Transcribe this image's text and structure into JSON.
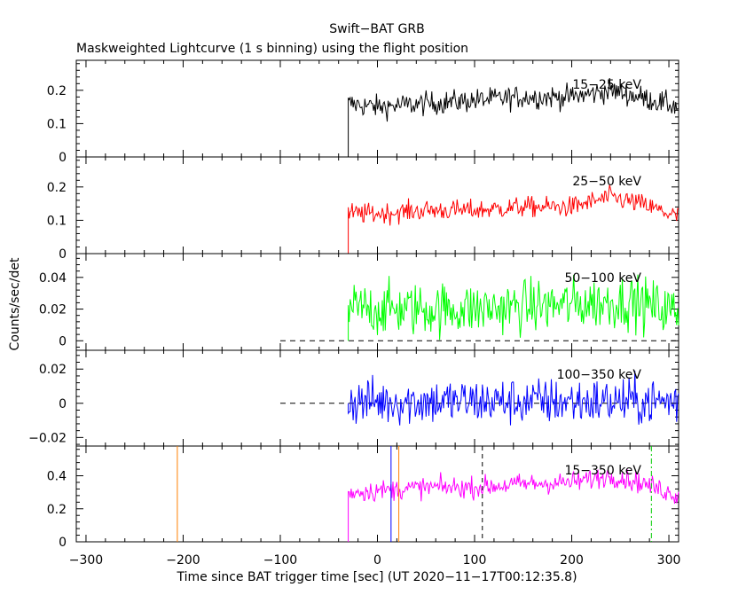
{
  "title": "Swift−BAT GRB",
  "subtitle": "Maskweighted Lightcurve (1 s binning) using the flight position",
  "xlabel": "Time since BAT trigger time [sec] (UT 2020−11−17T00:12:35.8)",
  "ylabel": "Counts/sec/det",
  "chart_data": {
    "type": "line",
    "title": "Swift−BAT GRB",
    "subtitle": "Maskweighted Lightcurve (1 s binning) using the flight position",
    "xlabel": "Time since BAT trigger time [sec] (UT 2020−11−17T00:12:35.8)",
    "ylabel": "Counts/sec/det",
    "xlim": [
      -310,
      310
    ],
    "x_ticks": [
      -300,
      -200,
      -100,
      0,
      100,
      200,
      300
    ],
    "x_tick_labels": [
      "−300",
      "−200",
      "−100",
      "0",
      "100",
      "200",
      "300"
    ],
    "data_start": -30,
    "panels": [
      {
        "name": "15−25 keV",
        "color": "#000000",
        "ylim": [
          0,
          0.29
        ],
        "y_ticks": [
          0,
          0.1,
          0.2
        ],
        "y_tick_labels": [
          "0",
          "0.1",
          "0.2"
        ],
        "baseline_from": -310,
        "levels": [
          {
            "t": -30,
            "v": 0.16
          },
          {
            "t": 0,
            "v": 0.15
          },
          {
            "t": 50,
            "v": 0.16
          },
          {
            "t": 100,
            "v": 0.17
          },
          {
            "t": 150,
            "v": 0.18
          },
          {
            "t": 200,
            "v": 0.18
          },
          {
            "t": 240,
            "v": 0.2
          },
          {
            "t": 270,
            "v": 0.18
          },
          {
            "t": 310,
            "v": 0.15
          }
        ],
        "noise": 0.025
      },
      {
        "name": "25−50 keV",
        "color": "#ff0000",
        "ylim": [
          0,
          0.29
        ],
        "y_ticks": [
          0,
          0.1,
          0.2
        ],
        "y_tick_labels": [
          "0",
          "0.1",
          "0.2"
        ],
        "baseline_from": null,
        "levels": [
          {
            "t": -30,
            "v": 0.12
          },
          {
            "t": 0,
            "v": 0.12
          },
          {
            "t": 50,
            "v": 0.13
          },
          {
            "t": 100,
            "v": 0.13
          },
          {
            "t": 150,
            "v": 0.14
          },
          {
            "t": 200,
            "v": 0.14
          },
          {
            "t": 240,
            "v": 0.17
          },
          {
            "t": 270,
            "v": 0.15
          },
          {
            "t": 310,
            "v": 0.11
          }
        ],
        "noise": 0.022
      },
      {
        "name": "50−100 keV",
        "color": "#00ff00",
        "ylim": [
          -0.006,
          0.055
        ],
        "y_ticks": [
          0,
          0.02,
          0.04
        ],
        "y_tick_labels": [
          "0",
          "0.02",
          "0.04"
        ],
        "baseline_from": -100,
        "levels": [
          {
            "t": -30,
            "v": 0.02
          },
          {
            "t": 100,
            "v": 0.02
          },
          {
            "t": 200,
            "v": 0.023
          },
          {
            "t": 260,
            "v": 0.025
          },
          {
            "t": 310,
            "v": 0.018
          }
        ],
        "noise": 0.012
      },
      {
        "name": "100−350 keV",
        "color": "#0000ff",
        "ylim": [
          -0.025,
          0.031
        ],
        "y_ticks": [
          -0.02,
          0,
          0.02
        ],
        "y_tick_labels": [
          "−0.02",
          "0",
          "0.02"
        ],
        "baseline_from": -100,
        "levels": [
          {
            "t": -30,
            "v": 0.001
          },
          {
            "t": 310,
            "v": 0.001
          }
        ],
        "noise": 0.01
      },
      {
        "name": "15−350 keV",
        "color": "#ff00ff",
        "ylim": [
          0,
          0.58
        ],
        "y_ticks": [
          0,
          0.2,
          0.4
        ],
        "y_tick_labels": [
          "0",
          "0.2",
          "0.4"
        ],
        "baseline_from": -310,
        "levels": [
          {
            "t": -30,
            "v": 0.3
          },
          {
            "t": 0,
            "v": 0.31
          },
          {
            "t": 50,
            "v": 0.33
          },
          {
            "t": 100,
            "v": 0.33
          },
          {
            "t": 150,
            "v": 0.35
          },
          {
            "t": 200,
            "v": 0.36
          },
          {
            "t": 240,
            "v": 0.4
          },
          {
            "t": 270,
            "v": 0.36
          },
          {
            "t": 310,
            "v": 0.28
          }
        ],
        "noise": 0.045,
        "markers": [
          {
            "t": -206,
            "color": "#ff8000",
            "style": "solid"
          },
          {
            "t": 14,
            "color": "#0000ff",
            "style": "solid"
          },
          {
            "t": 22,
            "color": "#ff8000",
            "style": "solid"
          },
          {
            "t": 108,
            "color": "#000000",
            "style": "dashed"
          },
          {
            "t": 282,
            "color": "#00cc00",
            "style": "dashdot"
          }
        ]
      }
    ]
  }
}
